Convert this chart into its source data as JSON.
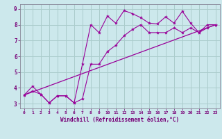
{
  "xlabel": "Windchill (Refroidissement éolien,°C)",
  "bg_color": "#cce8ec",
  "grid_color": "#aacccc",
  "line_color": "#990099",
  "xlim": [
    -0.5,
    23.5
  ],
  "ylim": [
    2.7,
    9.3
  ],
  "xticks": [
    0,
    1,
    2,
    3,
    4,
    5,
    6,
    7,
    8,
    9,
    10,
    11,
    12,
    13,
    14,
    15,
    16,
    17,
    18,
    19,
    20,
    21,
    22,
    23
  ],
  "yticks": [
    3,
    4,
    5,
    6,
    7,
    8,
    9
  ],
  "line1_x": [
    0,
    1,
    2,
    3,
    4,
    5,
    6,
    7,
    8,
    9,
    10,
    11,
    12,
    13,
    14,
    15,
    16,
    17,
    18,
    19,
    20,
    21,
    22,
    23
  ],
  "line1_y": [
    3.55,
    4.1,
    3.6,
    3.05,
    3.5,
    3.5,
    3.05,
    5.5,
    8.0,
    7.5,
    8.55,
    8.1,
    8.9,
    8.7,
    8.45,
    8.1,
    8.05,
    8.5,
    8.1,
    8.85,
    8.1,
    7.5,
    8.0,
    8.0
  ],
  "line2_x": [
    0,
    1,
    2,
    3,
    4,
    5,
    6,
    7,
    8,
    9,
    10,
    11,
    12,
    13,
    14,
    15,
    16,
    17,
    18,
    19,
    20,
    21,
    22,
    23
  ],
  "line2_y": [
    3.55,
    3.8,
    3.6,
    3.05,
    3.5,
    3.5,
    3.05,
    3.3,
    5.5,
    5.5,
    6.3,
    6.7,
    7.3,
    7.7,
    8.0,
    7.5,
    7.5,
    7.5,
    7.8,
    7.5,
    7.8,
    7.5,
    7.8,
    8.0
  ],
  "line3_x": [
    0,
    23
  ],
  "line3_y": [
    3.55,
    8.0
  ]
}
